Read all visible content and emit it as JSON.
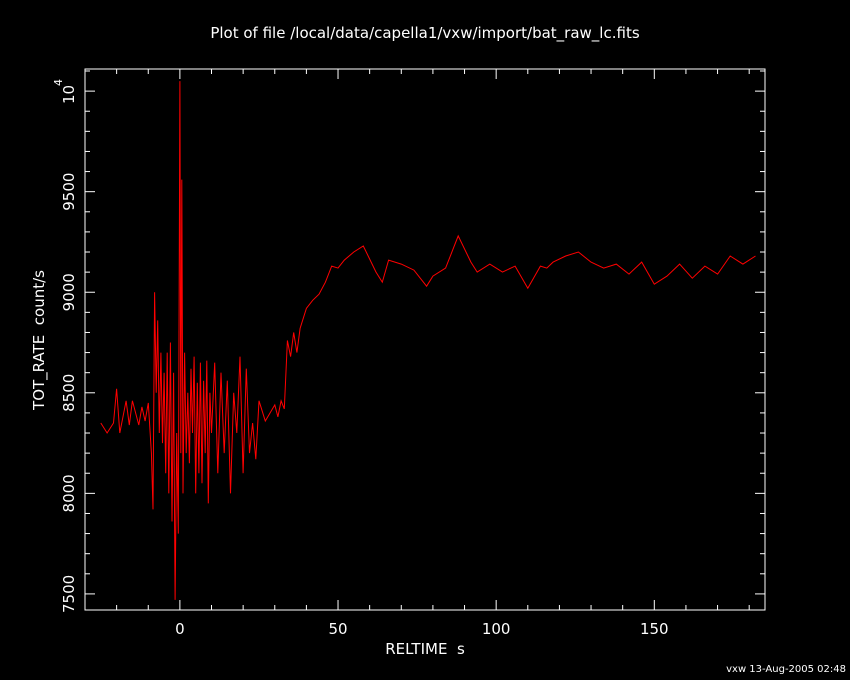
{
  "chart_data": {
    "type": "line",
    "title": "Plot of file /local/data/capella1/vxw/import/bat_raw_lc.fits",
    "xlabel": "RELTIME  s",
    "ylabel": "TOT_RATE  count/s",
    "footer": "vxw 13-Aug-2005 02:48",
    "xlim": [
      -30,
      185
    ],
    "ylim": [
      7420,
      10110
    ],
    "xticks": [
      0,
      50,
      100,
      150
    ],
    "xtick_labels": [
      "0",
      "50",
      "100",
      "150"
    ],
    "yticks": [
      7500,
      8000,
      8500,
      9000,
      9500
    ],
    "ytick_labels": [
      "7500",
      "8000",
      "8500",
      "9000",
      "9500"
    ],
    "ytick_top": {
      "base": "10",
      "exponent": "4",
      "value": 10000
    },
    "grid": false,
    "line_color": "#ff0000",
    "axis_color": "#ffffff",
    "series": [
      {
        "x": [
          -25,
          -23,
          -21,
          -20,
          -19,
          -17,
          -16,
          -15,
          -13,
          -12,
          -11,
          -10,
          -9,
          -8.5,
          -8,
          -7.5,
          -7,
          -6.5,
          -6,
          -5.5,
          -5,
          -4.5,
          -4,
          -3.5,
          -3,
          -2.5,
          -2,
          -1.5,
          -1,
          -0.5,
          0,
          0.3,
          0.6,
          1,
          1.5,
          2,
          2.5,
          3,
          3.5,
          4,
          4.5,
          5,
          5.5,
          6,
          6.5,
          7,
          7.5,
          8,
          8.5,
          9,
          9.5,
          10,
          11,
          12,
          13,
          14,
          15,
          16,
          17,
          18,
          19,
          20,
          21,
          22,
          23,
          24,
          25,
          27,
          30,
          31,
          32,
          33,
          34,
          35,
          36,
          37,
          38,
          40,
          42,
          44,
          46,
          48,
          50,
          52,
          55,
          58,
          62,
          64,
          66,
          70,
          74,
          78,
          80,
          84,
          88,
          92,
          94,
          98,
          102,
          106,
          110,
          114,
          116,
          118,
          122,
          126,
          130,
          134,
          138,
          142,
          146,
          150,
          154,
          158,
          162,
          166,
          170,
          174,
          178,
          182
        ],
        "y": [
          8350,
          8300,
          8350,
          8520,
          8300,
          8460,
          8340,
          8460,
          8340,
          8430,
          8360,
          8450,
          8200,
          7920,
          9000,
          8500,
          8860,
          8300,
          8700,
          8250,
          8600,
          8100,
          8700,
          8000,
          8750,
          7860,
          8600,
          7470,
          8300,
          7800,
          10050,
          8200,
          9560,
          8000,
          8700,
          8200,
          8500,
          8150,
          8620,
          8300,
          8680,
          8000,
          8550,
          8100,
          8650,
          8050,
          8560,
          8200,
          8660,
          7950,
          8500,
          8300,
          8650,
          8100,
          8600,
          8200,
          8560,
          8000,
          8500,
          8300,
          8680,
          8100,
          8620,
          8200,
          8350,
          8170,
          8460,
          8360,
          8440,
          8380,
          8460,
          8420,
          8760,
          8680,
          8800,
          8700,
          8820,
          8920,
          8960,
          8990,
          9050,
          9130,
          9120,
          9160,
          9200,
          9230,
          9100,
          9050,
          9160,
          9140,
          9110,
          9030,
          9080,
          9120,
          9280,
          9150,
          9100,
          9140,
          9100,
          9130,
          9020,
          9130,
          9120,
          9150,
          9180,
          9200,
          9150,
          9120,
          9140,
          9090,
          9150,
          9040,
          9080,
          9140,
          9070,
          9130,
          9090,
          9180,
          9140,
          9180
        ]
      }
    ]
  }
}
